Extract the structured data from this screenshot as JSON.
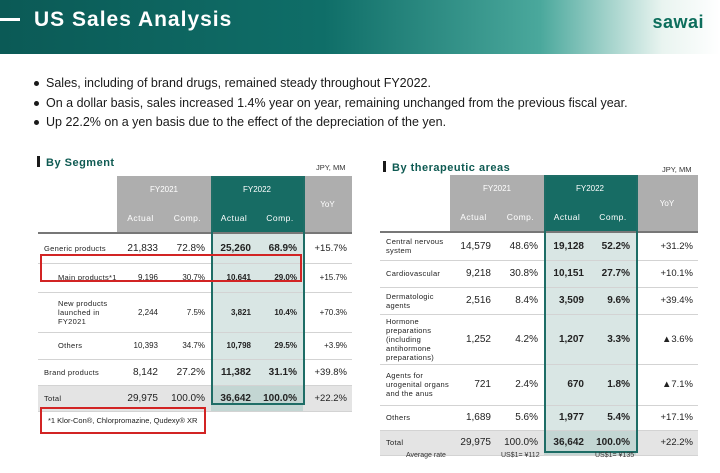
{
  "header": {
    "title": "US Sales Analysis",
    "logo": "sawai"
  },
  "bullets": [
    "Sales, including of  brand drugs, remained steady throughout FY2022.",
    "On a dollar basis, sales increased 1.4% year on year, remaining unchanged from the previous fiscal year.",
    "Up 22.2% on a yen basis due to the effect of the depreciation of the yen."
  ],
  "segment": {
    "title": "By Segment",
    "unit": "JPY, MM",
    "fy2021": "FY2021",
    "fy2022": "FY2022",
    "yoy": "YoY",
    "actual": "Actual",
    "comp": "Comp.",
    "rows": [
      {
        "label": "Generic products",
        "a21": "21,833",
        "c21": "72.8%",
        "a22": "25,260",
        "c22": "68.9%",
        "yoy": "+15.7%"
      },
      {
        "label": "Main products*1",
        "a21": "9,196",
        "c21": "30.7%",
        "a22": "10,641",
        "c22": "29.0%",
        "yoy": "+15.7%"
      },
      {
        "label": "New products launched in FY2021",
        "a21": "2,244",
        "c21": "7.5%",
        "a22": "3,821",
        "c22": "10.4%",
        "yoy": "+70.3%"
      },
      {
        "label": "Others",
        "a21": "10,393",
        "c21": "34.7%",
        "a22": "10,798",
        "c22": "29.5%",
        "yoy": "+3.9%"
      },
      {
        "label": "Brand products",
        "a21": "8,142",
        "c21": "27.2%",
        "a22": "11,382",
        "c22": "31.1%",
        "yoy": "+39.8%"
      },
      {
        "label": "Total",
        "a21": "29,975",
        "c21": "100.0%",
        "a22": "36,642",
        "c22": "100.0%",
        "yoy": "+22.2%"
      }
    ],
    "footnote": "*1  Klor-Con®, Chlorpromazine, Qudexy® XR"
  },
  "therapeutic": {
    "title": "By therapeutic areas",
    "unit": "JPY, MM",
    "fy2021": "FY2021",
    "fy2022": "FY2022",
    "yoy": "YoY",
    "actual": "Actual",
    "comp": "Comp.",
    "rows": [
      {
        "label": "Central nervous system",
        "a21": "14,579",
        "c21": "48.6%",
        "a22": "19,128",
        "c22": "52.2%",
        "yoy": "+31.2%"
      },
      {
        "label": "Cardiovascular",
        "a21": "9,218",
        "c21": "30.8%",
        "a22": "10,151",
        "c22": "27.7%",
        "yoy": "+10.1%"
      },
      {
        "label": "Dermatologic agents",
        "a21": "2,516",
        "c21": "8.4%",
        "a22": "3,509",
        "c22": "9.6%",
        "yoy": "+39.4%"
      },
      {
        "label": "Hormone preparations (including antihormone preparations)",
        "a21": "1,252",
        "c21": "4.2%",
        "a22": "1,207",
        "c22": "3.3%",
        "yoy": "▲3.6%"
      },
      {
        "label": "Agents for urogenital organs and the anus",
        "a21": "721",
        "c21": "2.4%",
        "a22": "670",
        "c22": "1.8%",
        "yoy": "▲7.1%"
      },
      {
        "label": "Others",
        "a21": "1,689",
        "c21": "5.6%",
        "a22": "1,977",
        "c22": "5.4%",
        "yoy": "+17.1%"
      },
      {
        "label": "Total",
        "a21": "29,975",
        "c21": "100.0%",
        "a22": "36,642",
        "c22": "100.0%",
        "yoy": "+22.2%"
      }
    ],
    "average_rate_label": "Average rate",
    "rate_fy2021": "US$1= ¥112",
    "rate_fy2022": "US$1= ¥135"
  }
}
